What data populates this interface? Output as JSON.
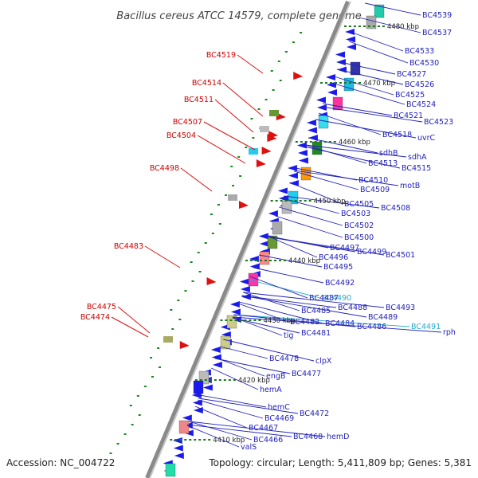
{
  "header": {
    "title": "Bacillus cereus ATCC 14579, complete genome"
  },
  "footer": {
    "accession": "Accession: NC_004722",
    "topology": "Topology: circular; Length: 5,411,809 bp; Genes: 5,381"
  },
  "kbp_ticks": [
    "4480 kbp",
    "4470 kbp",
    "4460 kbp",
    "4450 kbp",
    "4440 kbp",
    "4430 kbp",
    "4420 kbp",
    "4410 kbp"
  ],
  "left_labels": [
    "BC4519",
    "BC4514",
    "BC4511",
    "BC4507",
    "BC4504",
    "BC4498",
    "BC4483",
    "BC4475",
    "BC4474"
  ],
  "right_labels": [
    "BC4539",
    "BC4537",
    "BC4533",
    "BC4530",
    "BC4527",
    "BC4526",
    "BC4525",
    "BC4524",
    "BC4521",
    "BC4523",
    "uvrC",
    "BC4518",
    "sdhA",
    "sdhB",
    "BC4513",
    "BC4515",
    "BC4510",
    "motB",
    "BC4509",
    "BC4505",
    "BC4508",
    "BC4503",
    "BC4502",
    "BC4500",
    "BC4497",
    "BC4499",
    "BC4501",
    "BC4496",
    "BC4495",
    "BC4492",
    "BC4490",
    "BC4487",
    "BC4488",
    "BC4493",
    "BC4485",
    "BC4489",
    "BC4491",
    "rph",
    "BC4482",
    "BC4484",
    "BC4486",
    "BC4481",
    "tig",
    "clpX",
    "BC4478",
    "BC4477",
    "engB",
    "hemA",
    "hemC",
    "BC4472",
    "BC4469",
    "BC4467",
    "BC4468",
    "hemD",
    "BC4466",
    "valS"
  ],
  "colors": {
    "backbone": "#888888",
    "forward": "#1a1aee",
    "reverse": "#dd1111",
    "highlight": "#22aacc"
  }
}
